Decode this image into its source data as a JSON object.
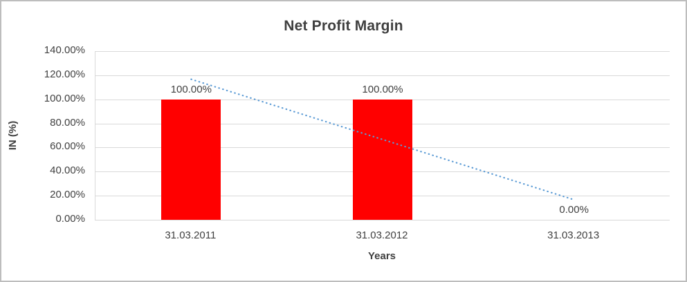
{
  "chart_data": {
    "type": "bar",
    "title": "Net Profit Margin",
    "xlabel": "Years",
    "ylabel": "IN (%)",
    "categories": [
      "31.03.2011",
      "31.03.2012",
      "31.03.2013"
    ],
    "values": [
      100,
      100,
      0
    ],
    "data_labels": [
      "100.00%",
      "100.00%",
      "0.00%"
    ],
    "y_ticks": [
      0,
      20,
      40,
      60,
      80,
      100,
      120,
      140
    ],
    "y_tick_labels": [
      "0.00%",
      "20.00%",
      "40.00%",
      "60.00%",
      "80.00%",
      "100.00%",
      "120.00%",
      "140.00%"
    ],
    "ylim": [
      0,
      140
    ],
    "grid": true,
    "legend": false,
    "bar_color": "#ff0000",
    "trendline": {
      "type": "linear",
      "style": "dotted",
      "color": "#5b9bd5",
      "values": [
        116.67,
        66.67,
        16.67
      ]
    }
  },
  "colors": {
    "text": "#404040",
    "grid": "#d9d9d9",
    "background": "#ffffff",
    "frame_border": "#bdbdbd"
  }
}
